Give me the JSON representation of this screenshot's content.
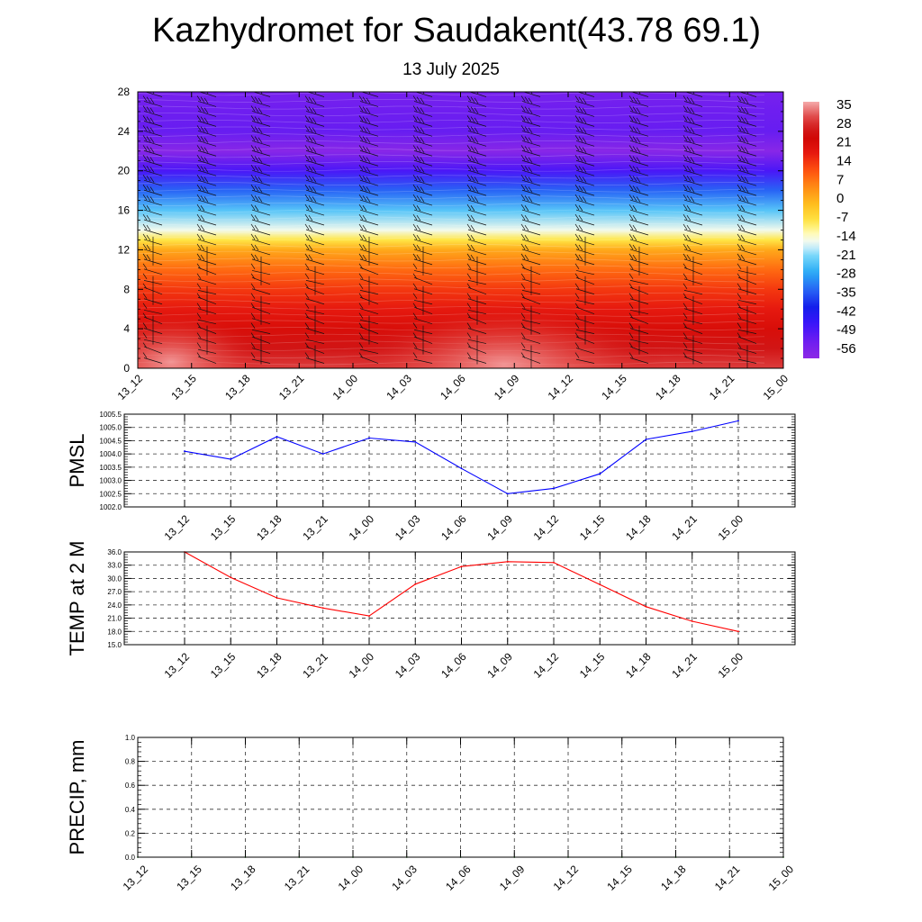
{
  "title": "Kazhydromet for Saudakent(43.78 69.1)",
  "subtitle": "13 July 2025",
  "colors": {
    "pmsl_line": "#0000ff",
    "temp_line": "#ff0000",
    "precip_line": "#006400"
  },
  "chart_data": [
    {
      "type": "heatmap",
      "x_tick_labels": [
        "13_12",
        "13_15",
        "13_18",
        "13_21",
        "14_00",
        "14_03",
        "14_06",
        "14_09",
        "14_12",
        "14_15",
        "14_18",
        "14_21",
        "15_00"
      ],
      "y_tick_labels": [
        "0",
        "4",
        "8",
        "12",
        "16",
        "20",
        "24",
        "28"
      ],
      "ylim": [
        0,
        28
      ],
      "colorbar_labels": [
        "35",
        "28",
        "21",
        "14",
        "7",
        "0",
        "-7",
        "-14",
        "-21",
        "-28",
        "-35",
        "-42",
        "-49",
        "-56"
      ],
      "colorbar_range": [
        -63,
        42
      ],
      "colorscale": "blue-violet (cold, top) through white/yellow to red (warm, bottom)",
      "overlay": "wind barbs (black)",
      "temperature_profile": {
        "levels": [
          0,
          2,
          4,
          6,
          8,
          10,
          12,
          13,
          14,
          16,
          18,
          20,
          22,
          24,
          26,
          28
        ],
        "values": [
          35,
          30,
          25,
          21,
          17,
          11,
          3,
          -7,
          -15,
          -24,
          -35,
          -51,
          -62,
          -55,
          -56,
          -58
        ]
      }
    },
    {
      "type": "line",
      "ylabel": "PMSL",
      "ylim": [
        1002.0,
        1005.5
      ],
      "y_tick_labels": [
        "1002.0",
        "1002.5",
        "1003.0",
        "1003.5",
        "1004.0",
        "1004.5",
        "1005.0",
        "1005.5"
      ],
      "categories": [
        "13_12",
        "13_15",
        "13_18",
        "13_21",
        "14_00",
        "14_03",
        "14_06",
        "14_09",
        "14_12",
        "14_15",
        "14_18",
        "14_21",
        "15_00"
      ],
      "values": [
        1004.1,
        1003.8,
        1004.65,
        1004.0,
        1004.6,
        1004.45,
        1003.45,
        1002.5,
        1002.7,
        1003.25,
        1004.55,
        1004.85,
        1005.25
      ],
      "grid": true
    },
    {
      "type": "line",
      "ylabel": "TEMP at 2 M",
      "ylim": [
        15.0,
        36.0
      ],
      "y_tick_labels": [
        "15.0",
        "18.0",
        "21.0",
        "24.0",
        "27.0",
        "30.0",
        "33.0",
        "36.0"
      ],
      "categories": [
        "13_12",
        "13_15",
        "13_18",
        "13_21",
        "14_00",
        "14_03",
        "14_06",
        "14_09",
        "14_12",
        "14_15",
        "14_18",
        "14_21",
        "15_00"
      ],
      "values": [
        36.0,
        30.2,
        25.6,
        23.3,
        21.5,
        28.7,
        32.7,
        33.8,
        33.6,
        28.6,
        23.6,
        20.3,
        18.0
      ],
      "grid": true
    },
    {
      "type": "line",
      "ylabel": "PRECIP, mm",
      "ylim": [
        0.0,
        1.0
      ],
      "y_tick_labels": [
        "0.0",
        "0.2",
        "0.4",
        "0.6",
        "0.8",
        "1.0"
      ],
      "x_tick_labels": [
        "13_12",
        "13_15",
        "13_18",
        "13_21",
        "14_00",
        "14_03",
        "14_06",
        "14_09",
        "14_12",
        "14_15",
        "14_18",
        "14_21",
        "15_00"
      ],
      "values": [
        0,
        0,
        0,
        0,
        0,
        0,
        0,
        0,
        0,
        0,
        0,
        0,
        0
      ],
      "grid": true
    }
  ]
}
